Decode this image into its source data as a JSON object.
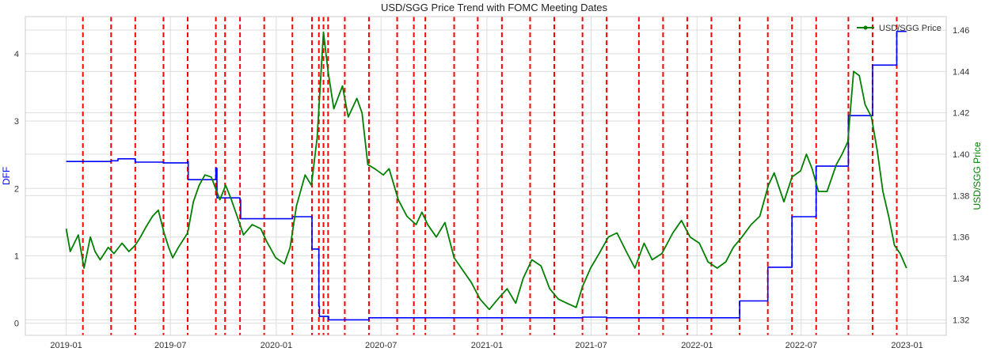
{
  "chart_data": {
    "type": "line",
    "title": "USD/SGG Price Trend with FOMC Meeting Dates",
    "xlabel": "",
    "ylabel_left": "DFF",
    "ylabel_right": "USD/SGG Price",
    "x_ticks": [
      "2019-01",
      "2019-07",
      "2020-01",
      "2020-07",
      "2021-01",
      "2021-07",
      "2022-01",
      "2022-07",
      "2023-01"
    ],
    "x_range": [
      "2018-10-22",
      "2023-03-10"
    ],
    "ylim_left": [
      -0.18,
      4.55
    ],
    "ylim_right": [
      1.3125,
      1.4665
    ],
    "y_ticks_left": [
      "0",
      "1",
      "2",
      "3",
      "4"
    ],
    "y_ticks_right": [
      "1.32",
      "1.34",
      "1.36",
      "1.38",
      "1.40",
      "1.42",
      "1.44",
      "1.46"
    ],
    "grid": true,
    "legend": {
      "position": "top-right",
      "entries": [
        "USD/SGG Price"
      ]
    },
    "colors": {
      "dff": "#0000ff",
      "price": "#008000",
      "fomc": "#ff0000",
      "grid": "#dddddd",
      "axis_text": "#333333"
    },
    "fomc_dates": [
      "2019-01-30",
      "2019-03-20",
      "2019-05-01",
      "2019-06-19",
      "2019-07-31",
      "2019-09-18",
      "2019-10-04",
      "2019-10-30",
      "2019-12-11",
      "2020-01-29",
      "2020-03-03",
      "2020-03-15",
      "2020-03-23",
      "2020-03-31",
      "2020-04-29",
      "2020-06-10",
      "2020-07-29",
      "2020-08-27",
      "2020-09-16",
      "2020-11-05",
      "2020-12-16",
      "2021-01-27",
      "2021-03-17",
      "2021-04-28",
      "2021-06-16",
      "2021-07-28",
      "2021-09-22",
      "2021-11-03",
      "2021-12-15",
      "2022-01-26",
      "2022-03-16",
      "2022-05-04",
      "2022-06-15",
      "2022-07-27",
      "2022-09-21",
      "2022-11-02",
      "2022-12-14"
    ],
    "series": [
      {
        "name": "DFF",
        "axis": "left",
        "step": true,
        "points": [
          [
            "2019-01-01",
            2.4
          ],
          [
            "2019-03-20",
            2.41
          ],
          [
            "2019-04-01",
            2.44
          ],
          [
            "2019-05-01",
            2.39
          ],
          [
            "2019-06-19",
            2.38
          ],
          [
            "2019-07-31",
            2.4
          ],
          [
            "2019-08-01",
            2.13
          ],
          [
            "2019-09-18",
            2.3
          ],
          [
            "2019-09-20",
            1.86
          ],
          [
            "2019-10-30",
            1.83
          ],
          [
            "2019-10-31",
            1.55
          ],
          [
            "2019-12-11",
            1.55
          ],
          [
            "2020-01-29",
            1.58
          ],
          [
            "2020-03-03",
            1.1
          ],
          [
            "2020-03-15",
            0.25
          ],
          [
            "2020-03-16",
            0.1
          ],
          [
            "2020-04-01",
            0.05
          ],
          [
            "2020-06-10",
            0.08
          ],
          [
            "2021-06-16",
            0.09
          ],
          [
            "2021-07-28",
            0.08
          ],
          [
            "2022-03-16",
            0.33
          ],
          [
            "2022-05-04",
            0.83
          ],
          [
            "2022-06-15",
            1.58
          ],
          [
            "2022-07-27",
            2.33
          ],
          [
            "2022-09-21",
            3.08
          ],
          [
            "2022-11-02",
            3.83
          ],
          [
            "2022-12-14",
            4.33
          ],
          [
            "2022-12-31",
            4.33
          ]
        ]
      },
      {
        "name": "USD/SGG Price",
        "axis": "right",
        "step": false,
        "points": [
          [
            "2019-01-01",
            1.364
          ],
          [
            "2019-01-08",
            1.353
          ],
          [
            "2019-01-15",
            1.357
          ],
          [
            "2019-01-22",
            1.361
          ],
          [
            "2019-02-01",
            1.345
          ],
          [
            "2019-02-12",
            1.36
          ],
          [
            "2019-02-20",
            1.353
          ],
          [
            "2019-03-01",
            1.349
          ],
          [
            "2019-03-15",
            1.355
          ],
          [
            "2019-03-25",
            1.352
          ],
          [
            "2019-04-08",
            1.357
          ],
          [
            "2019-04-20",
            1.353
          ],
          [
            "2019-05-01",
            1.356
          ],
          [
            "2019-05-10",
            1.36
          ],
          [
            "2019-05-20",
            1.365
          ],
          [
            "2019-05-31",
            1.37
          ],
          [
            "2019-06-10",
            1.373
          ],
          [
            "2019-06-20",
            1.362
          ],
          [
            "2019-06-28",
            1.355
          ],
          [
            "2019-07-05",
            1.35
          ],
          [
            "2019-07-15",
            1.355
          ],
          [
            "2019-07-31",
            1.362
          ],
          [
            "2019-08-10",
            1.377
          ],
          [
            "2019-08-20",
            1.385
          ],
          [
            "2019-08-30",
            1.39
          ],
          [
            "2019-09-10",
            1.389
          ],
          [
            "2019-09-25",
            1.378
          ],
          [
            "2019-10-05",
            1.385
          ],
          [
            "2019-10-15",
            1.378
          ],
          [
            "2019-10-25",
            1.37
          ],
          [
            "2019-11-05",
            1.361
          ],
          [
            "2019-11-20",
            1.366
          ],
          [
            "2019-12-05",
            1.364
          ],
          [
            "2019-12-15",
            1.358
          ],
          [
            "2019-12-31",
            1.35
          ],
          [
            "2020-01-15",
            1.347
          ],
          [
            "2020-01-25",
            1.355
          ],
          [
            "2020-02-05",
            1.375
          ],
          [
            "2020-02-20",
            1.39
          ],
          [
            "2020-03-02",
            1.385
          ],
          [
            "2020-03-12",
            1.408
          ],
          [
            "2020-03-23",
            1.459
          ],
          [
            "2020-03-31",
            1.44
          ],
          [
            "2020-04-10",
            1.422
          ],
          [
            "2020-04-25",
            1.433
          ],
          [
            "2020-05-05",
            1.418
          ],
          [
            "2020-05-20",
            1.427
          ],
          [
            "2020-05-29",
            1.42
          ],
          [
            "2020-06-08",
            1.395
          ],
          [
            "2020-06-20",
            1.393
          ],
          [
            "2020-07-05",
            1.39
          ],
          [
            "2020-07-15",
            1.393
          ],
          [
            "2020-07-31",
            1.378
          ],
          [
            "2020-08-15",
            1.37
          ],
          [
            "2020-08-31",
            1.366
          ],
          [
            "2020-09-10",
            1.372
          ],
          [
            "2020-09-20",
            1.366
          ],
          [
            "2020-10-05",
            1.36
          ],
          [
            "2020-10-20",
            1.367
          ],
          [
            "2020-11-05",
            1.35
          ],
          [
            "2020-11-20",
            1.344
          ],
          [
            "2020-12-05",
            1.338
          ],
          [
            "2020-12-20",
            1.33
          ],
          [
            "2021-01-05",
            1.325
          ],
          [
            "2021-01-20",
            1.33
          ],
          [
            "2021-02-05",
            1.335
          ],
          [
            "2021-02-20",
            1.328
          ],
          [
            "2021-03-05",
            1.34
          ],
          [
            "2021-03-20",
            1.349
          ],
          [
            "2021-04-05",
            1.346
          ],
          [
            "2021-04-20",
            1.335
          ],
          [
            "2021-05-05",
            1.33
          ],
          [
            "2021-05-20",
            1.328
          ],
          [
            "2021-06-05",
            1.326
          ],
          [
            "2021-06-16",
            1.336
          ],
          [
            "2021-06-30",
            1.345
          ],
          [
            "2021-07-15",
            1.352
          ],
          [
            "2021-07-31",
            1.36
          ],
          [
            "2021-08-15",
            1.362
          ],
          [
            "2021-08-31",
            1.353
          ],
          [
            "2021-09-15",
            1.345
          ],
          [
            "2021-10-01",
            1.357
          ],
          [
            "2021-10-15",
            1.349
          ],
          [
            "2021-11-01",
            1.352
          ],
          [
            "2021-11-20",
            1.362
          ],
          [
            "2021-12-05",
            1.368
          ],
          [
            "2021-12-20",
            1.36
          ],
          [
            "2022-01-05",
            1.357
          ],
          [
            "2022-01-20",
            1.348
          ],
          [
            "2022-02-05",
            1.345
          ],
          [
            "2022-02-20",
            1.348
          ],
          [
            "2022-03-05",
            1.355
          ],
          [
            "2022-03-20",
            1.36
          ],
          [
            "2022-04-05",
            1.366
          ],
          [
            "2022-04-20",
            1.37
          ],
          [
            "2022-05-05",
            1.385
          ],
          [
            "2022-05-15",
            1.391
          ],
          [
            "2022-06-01",
            1.377
          ],
          [
            "2022-06-15",
            1.389
          ],
          [
            "2022-06-30",
            1.392
          ],
          [
            "2022-07-10",
            1.4
          ],
          [
            "2022-07-20",
            1.393
          ],
          [
            "2022-07-31",
            1.382
          ],
          [
            "2022-08-15",
            1.382
          ],
          [
            "2022-08-31",
            1.395
          ],
          [
            "2022-09-10",
            1.4
          ],
          [
            "2022-09-20",
            1.406
          ],
          [
            "2022-09-30",
            1.44
          ],
          [
            "2022-10-10",
            1.438
          ],
          [
            "2022-10-20",
            1.424
          ],
          [
            "2022-10-31",
            1.418
          ],
          [
            "2022-11-10",
            1.402
          ],
          [
            "2022-11-20",
            1.382
          ],
          [
            "2022-11-30",
            1.37
          ],
          [
            "2022-12-10",
            1.356
          ],
          [
            "2022-12-20",
            1.352
          ],
          [
            "2022-12-31",
            1.345
          ]
        ]
      }
    ]
  }
}
